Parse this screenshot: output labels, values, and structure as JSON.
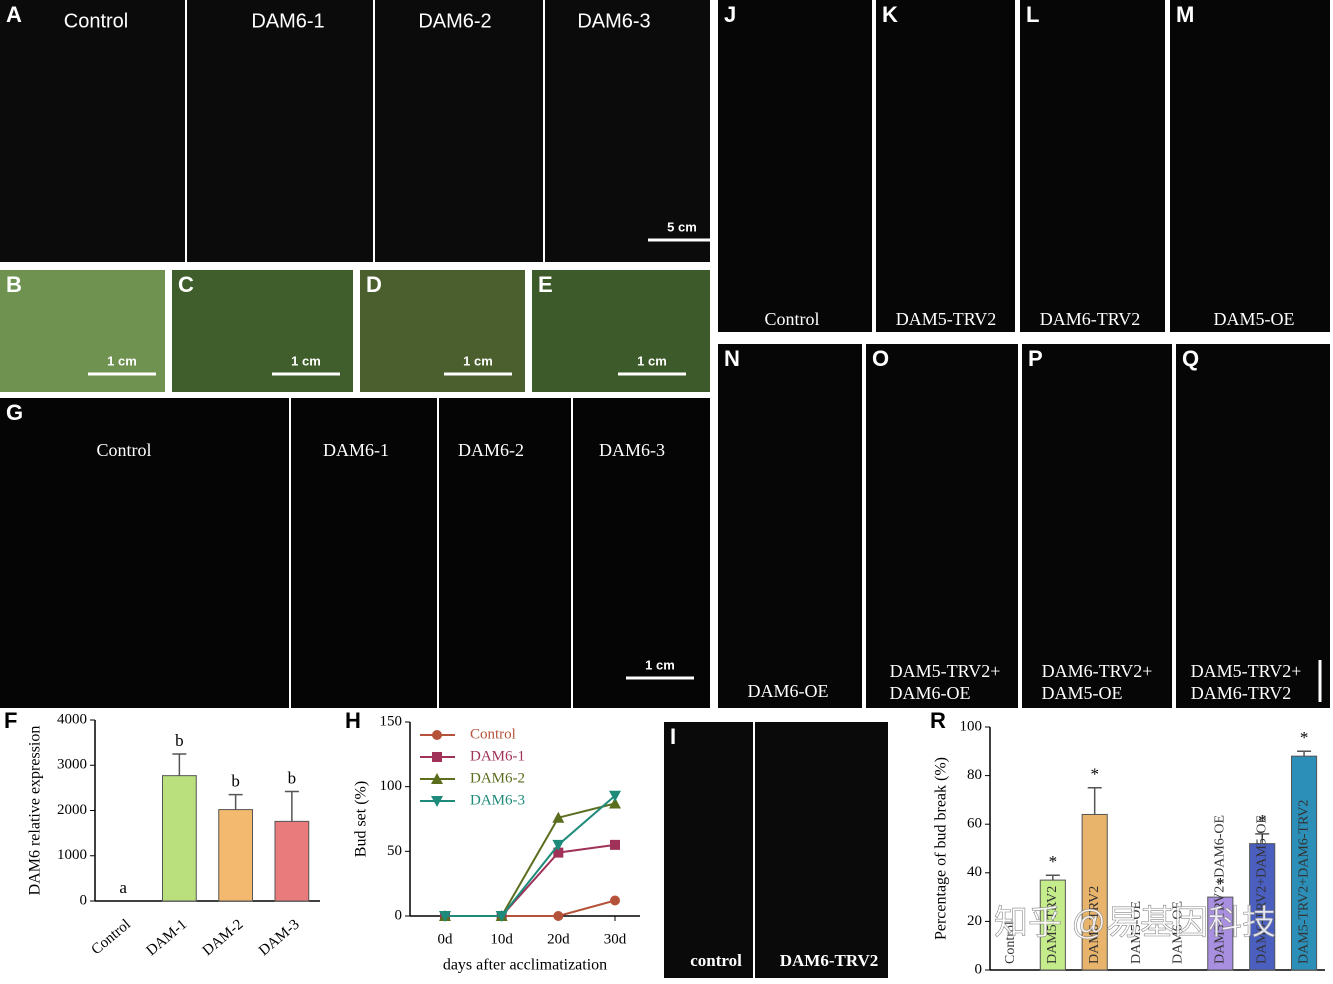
{
  "panels": [
    {
      "letter": "A",
      "labels": [
        "Control",
        "DAM6-1",
        "DAM6-2",
        "DAM6-3"
      ],
      "scale_bar": "5 cm"
    },
    {
      "letter": "B",
      "scale_bar": "1 cm"
    },
    {
      "letter": "C",
      "scale_bar": "1 cm"
    },
    {
      "letter": "D",
      "scale_bar": "1 cm"
    },
    {
      "letter": "E",
      "scale_bar": "1 cm"
    },
    {
      "letter": "G",
      "labels": [
        "Control",
        "DAM6-1",
        "DAM6-2",
        "DAM6-3"
      ],
      "scale_bar": "1 cm"
    },
    {
      "letter": "J",
      "labels": [
        "Control"
      ]
    },
    {
      "letter": "K",
      "labels": [
        "DAM5-TRV2"
      ]
    },
    {
      "letter": "L",
      "labels": [
        "DAM6-TRV2"
      ]
    },
    {
      "letter": "M",
      "labels": [
        "DAM5-OE"
      ]
    },
    {
      "letter": "N",
      "labels": [
        "DAM6-OE"
      ]
    },
    {
      "letter": "O",
      "labels": [
        "DAM5-TRV2+",
        "DAM6-OE"
      ]
    },
    {
      "letter": "P",
      "labels": [
        "DAM6-TRV2+",
        "DAM5-OE"
      ]
    },
    {
      "letter": "Q",
      "labels": [
        "DAM5-TRV2+",
        "DAM6-TRV2"
      ]
    },
    {
      "letter": "I",
      "labels": [
        "control",
        "DAM6-TRV2"
      ]
    }
  ],
  "watermark": "知乎 @易基因科技",
  "chart_data": [
    {
      "type": "bar",
      "panel": "F",
      "y_label": "DAM6 relative expression",
      "categories": [
        "Control",
        "DAM-1",
        "DAM-2",
        "DAM-3"
      ],
      "values": [
        0,
        2770,
        2020,
        1760
      ],
      "errors": [
        0,
        480,
        330,
        660
      ],
      "letters": [
        "a",
        "b",
        "b",
        "b"
      ],
      "colors": [
        "#ffffff",
        "#b9e07c",
        "#f3b96e",
        "#e97b7d"
      ],
      "ylim": [
        0,
        4000
      ],
      "yticks": [
        0,
        1000,
        2000,
        3000,
        4000
      ]
    },
    {
      "type": "line",
      "panel": "H",
      "y_label": "Bud set (%)",
      "x_label": "days after acclimatization",
      "categories": [
        "0d",
        "10d",
        "20d",
        "30d"
      ],
      "series": [
        {
          "name": "Control",
          "color": "#b5533a",
          "marker": "circle",
          "values": [
            0,
            0,
            0,
            12
          ]
        },
        {
          "name": "DAM6-1",
          "color": "#a0325a",
          "marker": "square",
          "values": [
            0,
            0,
            49,
            55
          ]
        },
        {
          "name": "DAM6-2",
          "color": "#5a6e1e",
          "marker": "triangle-up",
          "values": [
            0,
            0,
            76,
            87
          ]
        },
        {
          "name": "DAM6-3",
          "color": "#1e8a7a",
          "marker": "triangle-down",
          "values": [
            0,
            0,
            55,
            93
          ]
        }
      ],
      "ylim": [
        0,
        150
      ],
      "yticks": [
        0,
        50,
        100,
        150
      ]
    },
    {
      "type": "bar",
      "panel": "R",
      "y_label": "Percentage of bud break (%)",
      "categories": [
        "Control",
        "DAM5-TRV2",
        "DAM6-TRV2",
        "DAM5-OE",
        "DAM6-OE",
        "DAM5-TRV2+DAM6-OE",
        "DAM6-TRV2+DAM5-OE",
        "DAM5-TRV2+DAM6-TRV2"
      ],
      "values": [
        0,
        37,
        64,
        0,
        0,
        30,
        52,
        88
      ],
      "errors": [
        0,
        2,
        11,
        0,
        0,
        0,
        4,
        2
      ],
      "letters": [
        null,
        "*",
        "*",
        null,
        null,
        "*",
        "*",
        "*"
      ],
      "colors": [
        "#ffffff",
        "#c5ec8a",
        "#e8b36a",
        "#ffffff",
        "#ffffff",
        "#a98fe0",
        "#4b5fc0",
        "#2b8fb8"
      ],
      "ylim": [
        0,
        100
      ],
      "yticks": [
        0,
        20,
        40,
        60,
        80,
        100
      ]
    }
  ]
}
